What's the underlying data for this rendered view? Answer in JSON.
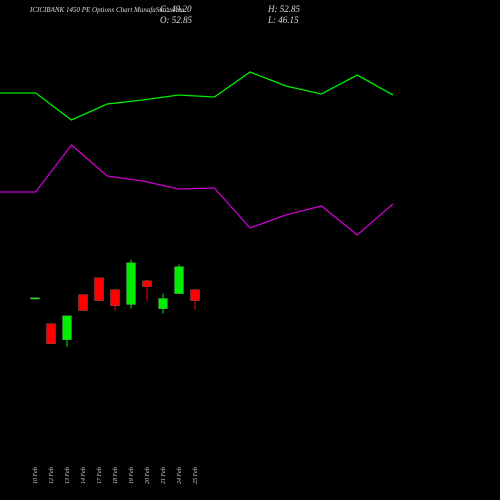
{
  "chart_data": [
    {
      "type": "line",
      "ylim": [
        0,
        500
      ],
      "series": [
        {
          "color": "#00ee00",
          "values": [
            407,
            407,
            380,
            396,
            400,
            405,
            403,
            428,
            414,
            406,
            425,
            405
          ]
        },
        {
          "color": "#cc00cc",
          "values": [
            308,
            308,
            355,
            324,
            319,
            311,
            312,
            272,
            285,
            294,
            265,
            296
          ]
        }
      ]
    },
    {
      "type": "candlestick",
      "title": "ICICIBANK 1450 PE Options Chart MunafaSutra.com",
      "summary": {
        "close": "C: 49.20",
        "high": "H: 52.85",
        "open": "O: 52.85",
        "low": "L: 46.15"
      },
      "categories": [
        "10 Feb",
        "12 Feb",
        "13 Feb",
        "14 Feb",
        "17 Feb",
        "18 Feb",
        "19 Feb",
        "20 Feb",
        "21 Feb",
        "24 Feb",
        "25 Feb"
      ],
      "open": [
        50.2,
        41.55,
        36.2,
        51.2,
        56.8,
        52.85,
        47.9,
        55.8,
        46.5,
        51.5,
        52.85
      ],
      "high": [
        50.2,
        41.55,
        44.2,
        51.2,
        56.8,
        52.85,
        62.8,
        56.2,
        51.5,
        61.2,
        52.85
      ],
      "low": [
        50.2,
        34.9,
        33.9,
        45.9,
        49.2,
        45.9,
        46.5,
        49.2,
        44.9,
        51.5,
        46.15
      ],
      "close": [
        50.2,
        34.9,
        44.2,
        45.9,
        49.2,
        47.5,
        61.8,
        53.85,
        49.9,
        60.5,
        49.2
      ],
      "up_color": "#00ee00",
      "down_color": "#ff0000",
      "ylim": [
        -17,
        149
      ]
    }
  ]
}
